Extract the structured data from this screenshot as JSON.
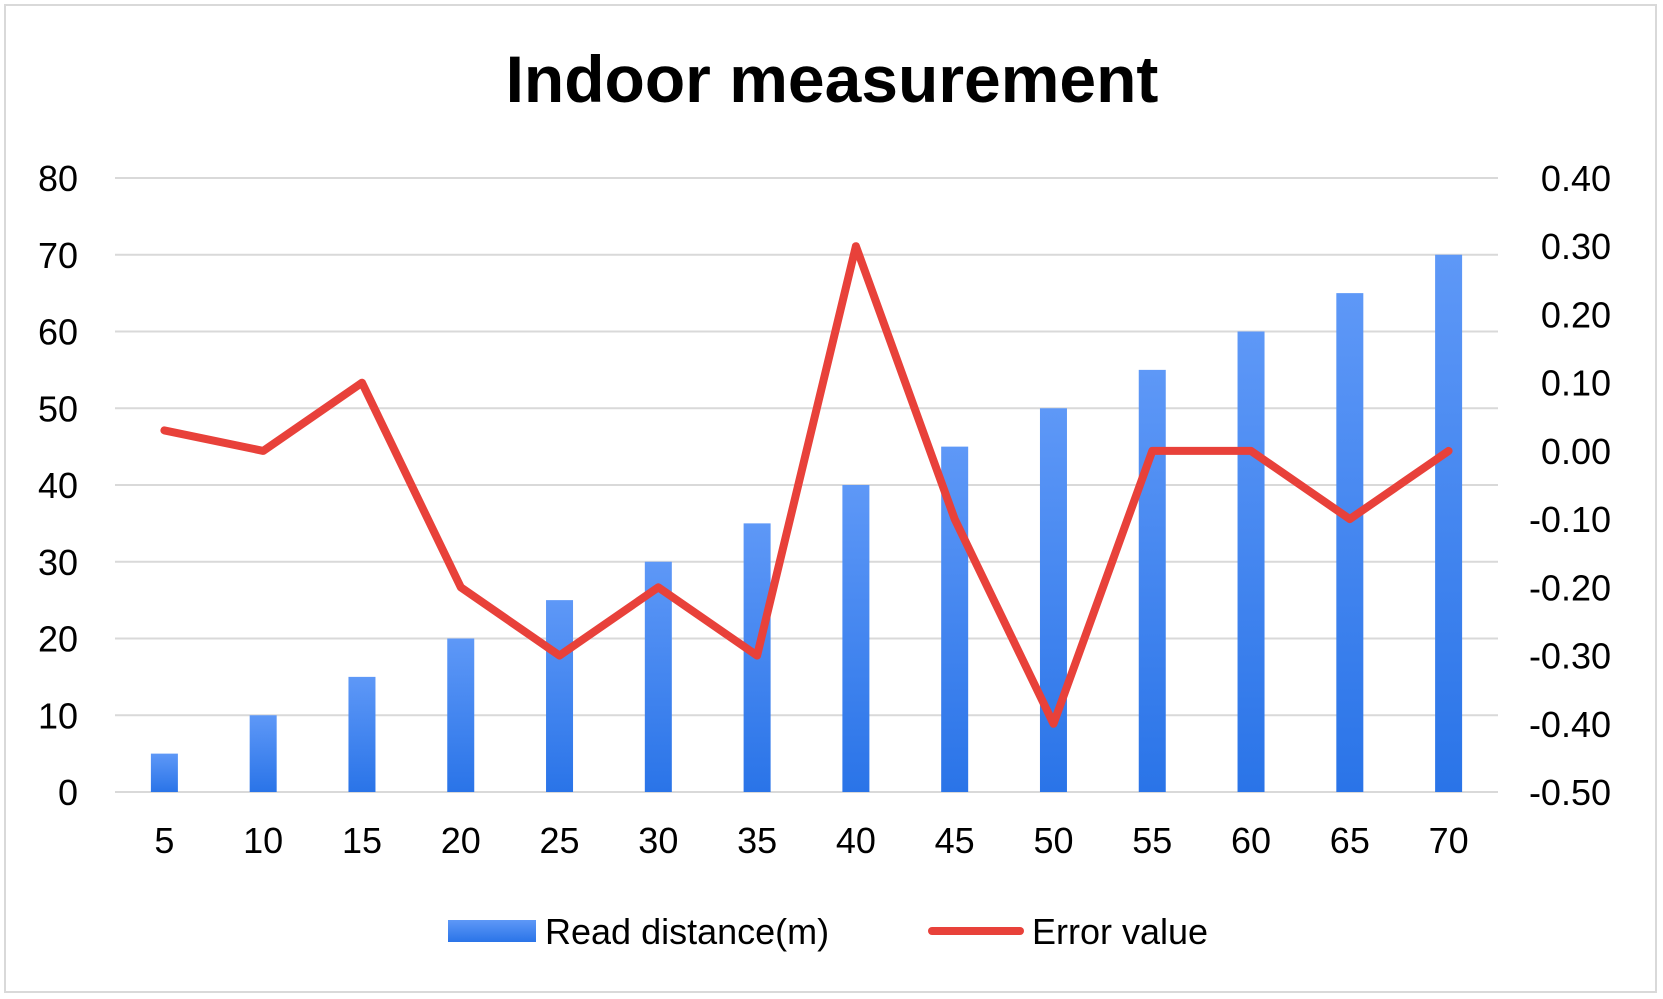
{
  "chart_data": {
    "type": "bar",
    "title": "Indoor measurement",
    "categories": [
      "5",
      "10",
      "15",
      "20",
      "25",
      "30",
      "35",
      "40",
      "45",
      "50",
      "55",
      "60",
      "65",
      "70"
    ],
    "series": [
      {
        "name": "Read distance(m)",
        "type": "bar",
        "axis": "left",
        "color": "#2f7df6",
        "values": [
          5,
          10,
          15,
          20,
          25,
          30,
          35,
          40,
          45,
          50,
          55,
          60,
          65,
          70
        ]
      },
      {
        "name": "Error value",
        "type": "line",
        "axis": "right",
        "color": "#e8413a",
        "values": [
          0.03,
          0.0,
          0.1,
          -0.2,
          -0.3,
          -0.2,
          -0.3,
          0.3,
          -0.1,
          -0.4,
          0.0,
          0.0,
          -0.1,
          0.0
        ]
      }
    ],
    "y_left": {
      "min": 0,
      "max": 80,
      "ticks": [
        "0",
        "10",
        "20",
        "30",
        "40",
        "50",
        "60",
        "70",
        "80"
      ]
    },
    "y_right": {
      "min": -0.5,
      "max": 0.4,
      "ticks": [
        "-0.50",
        "-0.40",
        "-0.30",
        "-0.20",
        "-0.10",
        "0.00",
        "0.10",
        "0.20",
        "0.30",
        "0.40"
      ]
    },
    "grid": true,
    "legend": "bottom"
  }
}
